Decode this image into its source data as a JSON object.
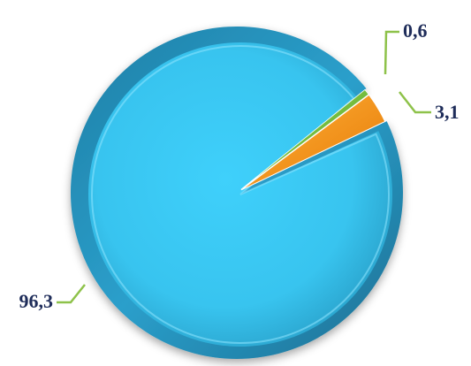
{
  "chart_data": {
    "type": "pie",
    "title": "",
    "slices": [
      {
        "label": "96,3",
        "value": 96.3,
        "color": "#3cc6ee"
      },
      {
        "label": "0,6",
        "value": 0.6,
        "color": "#6fbf3a"
      },
      {
        "label": "3,1",
        "value": 3.1,
        "color": "#f0941c"
      }
    ],
    "leader_line_color": "#8ec24a",
    "legend": "none",
    "style": "3d-bevel"
  }
}
